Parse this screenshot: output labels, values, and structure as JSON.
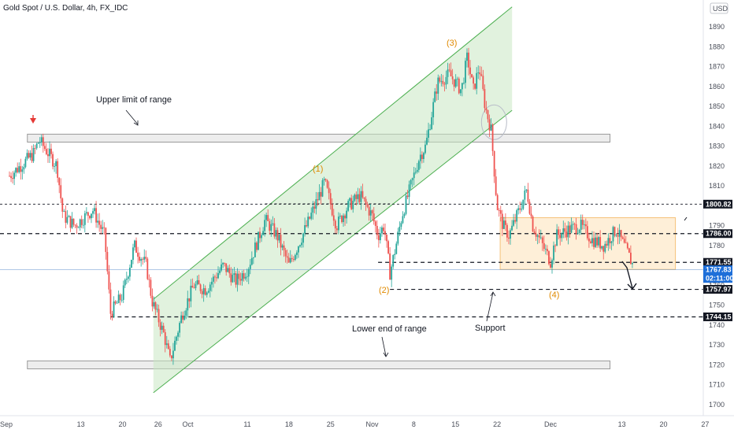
{
  "chart_data": {
    "type": "candlestick",
    "title": "Gold Spot / U.S. Dollar, 4h, FX_IDC",
    "currency_label": "USD",
    "ylim": [
      1692,
      1912
    ],
    "y_ticks": [
      1700,
      1710,
      1720,
      1730,
      1740,
      1750,
      1760,
      1770,
      1780,
      1790,
      1800,
      1810,
      1820,
      1830,
      1840,
      1850,
      1860,
      1870,
      1880,
      1890
    ],
    "x_ticks": [
      {
        "label": "Sep",
        "day": 0
      },
      {
        "label": "13",
        "day": 12
      },
      {
        "label": "20",
        "day": 19
      },
      {
        "label": "26",
        "day": 25
      },
      {
        "label": "Oct",
        "day": 30
      },
      {
        "label": "11",
        "day": 40
      },
      {
        "label": "18",
        "day": 47
      },
      {
        "label": "25",
        "day": 54
      },
      {
        "label": "Nov",
        "day": 61
      },
      {
        "label": "8",
        "day": 68
      },
      {
        "label": "15",
        "day": 75
      },
      {
        "label": "22",
        "day": 82
      },
      {
        "label": "Dec",
        "day": 91
      },
      {
        "label": "13",
        "day": 103
      },
      {
        "label": "20",
        "day": 110
      },
      {
        "label": "27",
        "day": 117
      }
    ],
    "price_path": [
      [
        0,
        1815
      ],
      [
        4,
        1826
      ],
      [
        5,
        1833
      ],
      [
        8,
        1820
      ],
      [
        9,
        1795
      ],
      [
        11,
        1790
      ],
      [
        14,
        1798
      ],
      [
        16,
        1785
      ],
      [
        17,
        1746
      ],
      [
        19,
        1755
      ],
      [
        21,
        1780
      ],
      [
        23,
        1770
      ],
      [
        24,
        1752
      ],
      [
        26,
        1735
      ],
      [
        27,
        1722
      ],
      [
        29,
        1745
      ],
      [
        31,
        1760
      ],
      [
        33,
        1758
      ],
      [
        36,
        1770
      ],
      [
        38,
        1762
      ],
      [
        40,
        1768
      ],
      [
        43,
        1793
      ],
      [
        45,
        1785
      ],
      [
        47,
        1770
      ],
      [
        50,
        1790
      ],
      [
        53,
        1812
      ],
      [
        55,
        1790
      ],
      [
        57,
        1800
      ],
      [
        59,
        1805
      ],
      [
        61,
        1795
      ],
      [
        62,
        1785
      ],
      [
        63,
        1790
      ],
      [
        64,
        1766
      ],
      [
        65,
        1780
      ],
      [
        66,
        1795
      ],
      [
        69,
        1825
      ],
      [
        70,
        1830
      ],
      [
        72,
        1862
      ],
      [
        74,
        1866
      ],
      [
        76,
        1858
      ],
      [
        77,
        1875
      ],
      [
        78,
        1858
      ],
      [
        79,
        1870
      ],
      [
        80,
        1850
      ],
      [
        81,
        1838
      ],
      [
        82,
        1800
      ],
      [
        83,
        1790
      ],
      [
        84,
        1785
      ],
      [
        86,
        1800
      ],
      [
        87,
        1808
      ],
      [
        88,
        1790
      ],
      [
        90,
        1778
      ],
      [
        91,
        1772
      ],
      [
        92,
        1785
      ],
      [
        94,
        1788
      ],
      [
        96,
        1790
      ],
      [
        98,
        1783
      ],
      [
        100,
        1780
      ],
      [
        102,
        1788
      ],
      [
        104,
        1776
      ],
      [
        105,
        1769
      ]
    ],
    "horizontal_levels": [
      {
        "value": 1800.82,
        "label": "1800.82",
        "style": "dashed-thin"
      },
      {
        "value": 1786.0,
        "label": "1786.00",
        "style": "dashed"
      },
      {
        "value": 1771.55,
        "label": "1771.55",
        "style": "dashed"
      },
      {
        "value": 1757.97,
        "label": "1757.97",
        "style": "dashed"
      },
      {
        "value": 1744.15,
        "label": "1744.15",
        "style": "dashed"
      }
    ],
    "current_price": {
      "value": 1767.83,
      "label": "1767.83",
      "countdown": "02:11:00"
    },
    "range_boxes": [
      {
        "name": "upper-range-box",
        "day_start": 5,
        "day_end": 101,
        "y_top": 1836,
        "y_bottom": 1832
      },
      {
        "name": "lower-range-box",
        "day_start": 5,
        "day_end": 101,
        "y_top": 1722,
        "y_bottom": 1718
      }
    ],
    "consolidation_box": {
      "day_start": 82,
      "day_end": 112,
      "y_top": 1794,
      "y_bottom": 1768
    },
    "channel": {
      "lower_start": [
        25,
        1706
      ],
      "lower_end": [
        84,
        1848
      ],
      "upper_start": [
        25,
        1753
      ],
      "upper_end": [
        84,
        1900
      ]
    },
    "annotations": {
      "upper_limit": "Upper limit of range",
      "lower_end": "Lower end of range",
      "support": "Support",
      "wave_1": "(1)",
      "wave_2": "(2)",
      "wave_3": "(3)",
      "wave_4": "(4)"
    }
  }
}
